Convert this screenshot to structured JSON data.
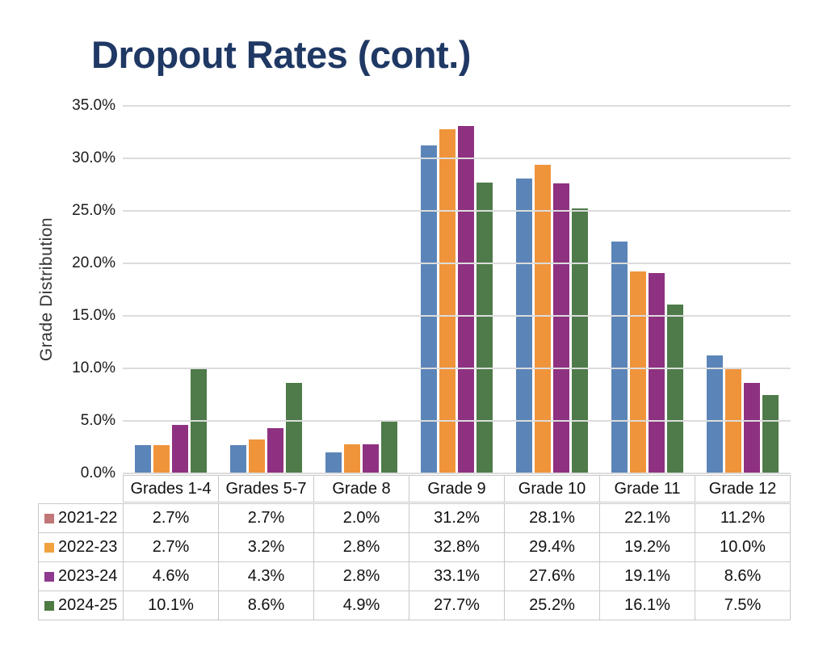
{
  "title": {
    "text": "Dropout Rates (cont.)",
    "color": "#1f3864"
  },
  "chart_data": {
    "type": "bar",
    "title": "Dropout Rates (cont.)",
    "xlabel": "",
    "ylabel": "Grade Distribution",
    "ylim": [
      0,
      35
    ],
    "ytick_step": 5,
    "ytick_labels": [
      "0.0%",
      "5.0%",
      "10.0%",
      "15.0%",
      "20.0%",
      "25.0%",
      "30.0%",
      "35.0%"
    ],
    "grid": true,
    "gridline_color": "#dcdcdc",
    "legend_position": "table-left-column",
    "categories": [
      "Grades 1-4",
      "Grades 5-7",
      "Grade 8",
      "Grade 9",
      "Grade 10",
      "Grade 11",
      "Grade 12"
    ],
    "series": [
      {
        "name": "2021-22",
        "bar_color": "#5b85b8",
        "swatch_color": "#c17677",
        "values": [
          2.7,
          2.7,
          2.0,
          31.2,
          28.1,
          22.1,
          11.2
        ]
      },
      {
        "name": "2022-23",
        "bar_color": "#f0943b",
        "swatch_color": "#f0a23f",
        "values": [
          2.7,
          3.2,
          2.8,
          32.8,
          29.4,
          19.2,
          10.0
        ]
      },
      {
        "name": "2023-24",
        "bar_color": "#8e3181",
        "swatch_color": "#8e3a8e",
        "values": [
          4.6,
          4.3,
          2.8,
          33.1,
          27.6,
          19.1,
          8.6
        ]
      },
      {
        "name": "2024-25",
        "bar_color": "#4e7b49",
        "swatch_color": "#4e7b42",
        "values": [
          10.1,
          8.6,
          4.9,
          27.7,
          25.2,
          16.1,
          7.5
        ]
      }
    ]
  },
  "table": {
    "column_headers": [
      "Grades 1-4",
      "Grades 5-7",
      "Grade 8",
      "Grade 9",
      "Grade 10",
      "Grade 11",
      "Grade 12"
    ],
    "row_labels": [
      "2021-22",
      "2022-23",
      "2023-24",
      "2024-25"
    ],
    "cells": [
      [
        "2.7%",
        "2.7%",
        "2.0%",
        "31.2%",
        "28.1%",
        "22.1%",
        "11.2%"
      ],
      [
        "2.7%",
        "3.2%",
        "2.8%",
        "32.8%",
        "29.4%",
        "19.2%",
        "10.0%"
      ],
      [
        "4.6%",
        "4.3%",
        "2.8%",
        "33.1%",
        "27.6%",
        "19.1%",
        "8.6%"
      ],
      [
        "10.1%",
        "8.6%",
        "4.9%",
        "27.7%",
        "25.2%",
        "16.1%",
        "7.5%"
      ]
    ]
  }
}
